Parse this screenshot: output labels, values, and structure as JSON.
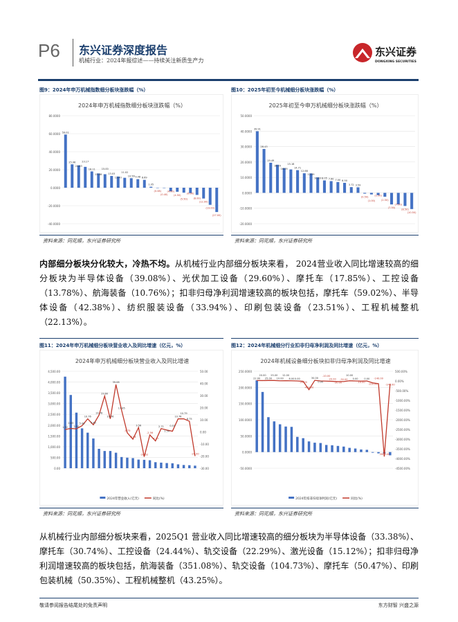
{
  "header": {
    "page": "P6",
    "report_title": "东兴证券深度报告",
    "subtitle": "机械行业：2024年报综述——持续关注新质生产力",
    "logo_cn": "东兴证券",
    "logo_en": "DONGXING SECURITIES",
    "brand_color": "#1b3f6e",
    "logo_color": "#c8262a"
  },
  "figures": [
    {
      "label": "图9：2024年申万机械指数细分板块涨跌幅（%）",
      "source": "资料来源：同花顺，东兴证券研究所"
    },
    {
      "label": "图10：2025年初至今机械细分板块涨跌幅（%）",
      "source": "资料来源：同花顺，东兴证券研究所"
    },
    {
      "label": "图11：2024年申万机械细分板块营业收入及同比增速（亿元，%）",
      "source": "资料来源：同花顺，东兴证券研究所"
    },
    {
      "label": "图12：2024年机械细分行业扣非归母净利润及同比增速（亿元，%）",
      "source": "资料来源：同花顺，东兴证券研究所"
    }
  ],
  "paragraph1": {
    "bold": "内部细分板块分化较大，冷热不均。",
    "text": "从机械行业内部细分板块来看， 2024营业收入同比增速较高的细分板块为半导体设备（39.08%）、光伏加工设备（29.60%）、摩托车（17.85%）、工控设备（13.78%）、航海装备（10.76%）；扣非归母净利润增速较高的板块包括，摩托车（59.02%）、半导体设备（42.38%）、纺织服装设备（33.94%）、印刷包装设备（23.51%）、工程机械整机（22.13%）。"
  },
  "paragraph2": {
    "text": "从机械行业内部细分板块来看，2025Q1 营业收入同比增速较高的细分板块为半导体设备（33.38%）、摩托车（30.74%）、工控设备（24.44%）、轨交设备（22.29%）、激光设备（15.12%）；扣非归母净利润增速较高的板块包括，航海装备（351.08%）、轨交设备（104.73%）、摩托车（50.47%）、印刷包装机械（50.35%）、工程机械整机（43.25%）。"
  },
  "footer": {
    "left": "敬请参阅报告结尾处的免责声明",
    "right": "东方财智 兴盛之源"
  },
  "chart_data": [
    {
      "type": "bar",
      "title": "2024年申万机械指数细分板块涨跌幅（%）",
      "ylim": [
        -40,
        80
      ],
      "yticks": [
        "80.0000",
        "60.0000",
        "40.0000",
        "20.0000",
        "0.0000",
        "-20.0000",
        "-40.0000"
      ],
      "grid": true,
      "bar_color": "#4472c4",
      "values": [
        59.01,
        25.96,
        24.83,
        23.17,
        18.11,
        15.86,
        15.0,
        13.03,
        12.4,
        11.02,
        10.56,
        9.48,
        8.69,
        1.05,
        -0.08,
        -0.4,
        -4.0,
        -4.5,
        -5.5,
        -6.0,
        -8.0,
        -12.0,
        -19.0,
        -27.0
      ]
    },
    {
      "type": "bar",
      "title": "2025年初至今申万机械细分板块涨跌幅（%）",
      "ylim": [
        -20,
        50
      ],
      "yticks": [
        "50.0000",
        "40.0000",
        "30.0000",
        "20.0000",
        "10.0000",
        "0.0000",
        "-10.0000",
        "-20.0000"
      ],
      "grid": true,
      "bar_color": "#4472c4",
      "values": [
        39.91,
        28.43,
        19.49,
        18.2,
        16.05,
        15.18,
        14.71,
        12.68,
        12.59,
        10.03,
        8.05,
        7.6,
        7.0,
        6.5,
        3.72,
        3.59,
        -0.5,
        -1.0,
        -1.5,
        -2.5,
        -7.5,
        -7.5,
        -8.5,
        -10.5
      ]
    },
    {
      "type": "bar+line",
      "title": "2024年申万机械细分板块营业收入及同比增速",
      "ylim": [
        0,
        4500
      ],
      "y2lim": [
        -30,
        50
      ],
      "yticks": [
        "4,500.00",
        "4,000.00",
        "3,500.00",
        "3,000.00",
        "2,500.00",
        "2,000.00",
        "1,500.00",
        "1,000.00",
        "500.00",
        "0.00"
      ],
      "y2ticks": [
        "50.00",
        "40.00",
        "30.00",
        "20.00",
        "10.00",
        "0.00",
        "-10.00",
        "-20.00",
        "-30.00"
      ],
      "bar_color": "#4472c4",
      "line_color": "#c0392b",
      "series": [
        {
          "name": "2024年营业收入(亿元)",
          "values": [
            4250,
            3400,
            2580,
            1850,
            1650,
            1380,
            900,
            800,
            800,
            720,
            520,
            490,
            470,
            400,
            390,
            370,
            280,
            260,
            240,
            230,
            180,
            150,
            140,
            120
          ]
        },
        {
          "name": "同比(%)",
          "values": [
            1.92,
            2.83,
            2.5,
            5.08,
            10.76,
            5.85,
            13.78,
            29.6,
            10.76,
            39.08,
            17.85,
            -0.75,
            -6.04,
            3.56,
            -20.52,
            -2.56,
            -7.47,
            2.71,
            1.5,
            0.53,
            10.76,
            10.79,
            8.75,
            -20.0
          ]
        }
      ]
    },
    {
      "type": "bar+line",
      "title": "2024年机械设备细分板块扣非归母净利润及同比增速",
      "ylim": [
        -50,
        250
      ],
      "y2lim": [
        -4500,
        500
      ],
      "yticks": [
        "250.0000",
        "200.0000",
        "150.0000",
        "100.0000",
        "50.0000",
        "0.0000",
        "-50.0000"
      ],
      "y2ticks": [
        "500.00%",
        "0.00%",
        "-500.00%",
        "-1000.00%",
        "-1500.00%",
        "-2000.00%",
        "-2500.00%",
        "-3000.00%",
        "-3500.00%",
        "-4000.00%",
        "-4500.00%"
      ],
      "bar_color": "#4472c4",
      "line_color": "#c0392b",
      "series": [
        {
          "name": "2024年扣非归母净利润(亿元)",
          "values": [
            222,
            186,
            108,
            95,
            86,
            79,
            78,
            47,
            43,
            33,
            29,
            28,
            22,
            21,
            19,
            17,
            13,
            11,
            8,
            7,
            -2,
            -4,
            -5,
            -10
          ]
        },
        {
          "name": "同比(%)",
          "values": [
            22,
            20,
            25,
            25,
            10,
            12,
            8,
            0,
            -20,
            -450,
            30,
            0,
            -10,
            -20,
            -30,
            -30,
            10,
            0,
            -10,
            0,
            -100,
            -140,
            -3900,
            -148
          ]
        }
      ]
    }
  ]
}
